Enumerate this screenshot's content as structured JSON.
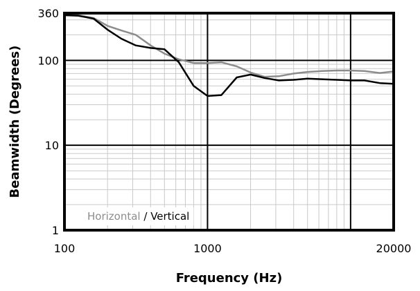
{
  "chart_data": {
    "type": "line",
    "title": "",
    "xlabel": "Frequency (Hz)",
    "ylabel": "Beamwidth (Degrees)",
    "x_scale": "log",
    "y_scale": "log",
    "xlim": [
      100,
      20000
    ],
    "ylim": [
      1,
      360
    ],
    "x_tick_labels": [
      "100",
      "1000",
      "20000"
    ],
    "x_tick_values": [
      100,
      1000,
      20000
    ],
    "y_tick_labels": [
      "1",
      "10",
      "100",
      "360"
    ],
    "y_tick_values": [
      1,
      10,
      100,
      360
    ],
    "grid": true,
    "legend": "bottom-left",
    "legend_separator": " / ",
    "series": [
      {
        "name": "Horizontal",
        "color": "#8c8c8c",
        "x": [
          100,
          125,
          160,
          200,
          250,
          315,
          400,
          500,
          630,
          800,
          1000,
          1250,
          1600,
          2000,
          2500,
          3150,
          4000,
          5000,
          6300,
          8000,
          10000,
          12500,
          16000,
          20000
        ],
        "y": [
          340,
          340,
          315,
          255,
          225,
          200,
          150,
          120,
          103,
          93,
          93,
          95,
          85,
          72,
          64,
          65,
          70,
          73,
          75,
          76,
          76,
          75,
          71,
          74
        ]
      },
      {
        "name": "Vertical",
        "color": "#000000",
        "x": [
          100,
          125,
          160,
          200,
          250,
          315,
          400,
          500,
          630,
          800,
          1000,
          1250,
          1600,
          2000,
          2500,
          3150,
          4000,
          5000,
          6300,
          8000,
          10000,
          12500,
          16000,
          20000
        ],
        "y": [
          340,
          335,
          310,
          230,
          180,
          150,
          140,
          135,
          95,
          50,
          38,
          39,
          63,
          68,
          62,
          58,
          59,
          61,
          60,
          59,
          58,
          58,
          54,
          53
        ]
      }
    ]
  }
}
